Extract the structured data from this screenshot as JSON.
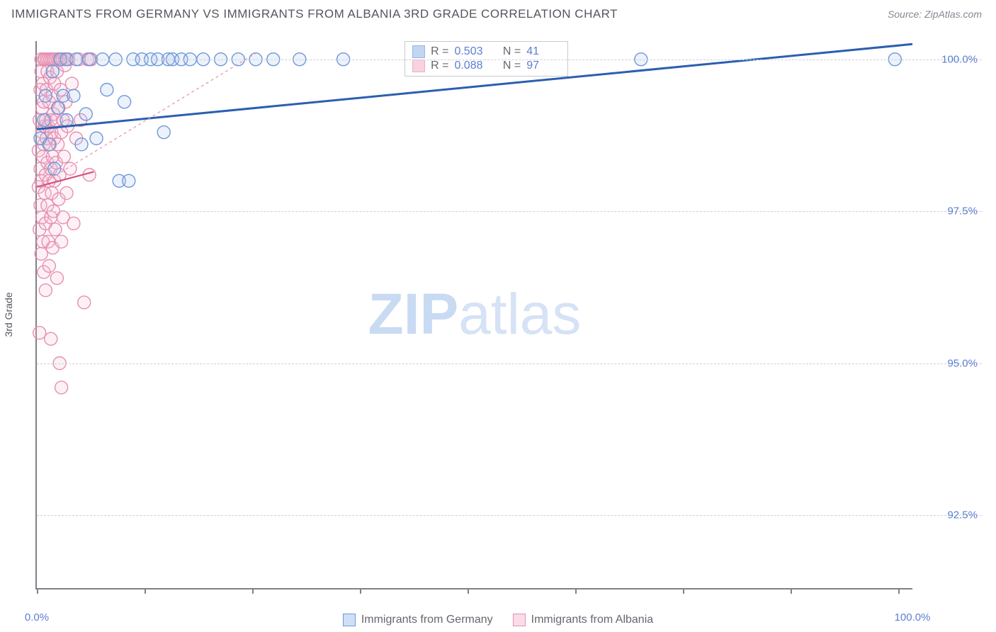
{
  "title": "IMMIGRANTS FROM GERMANY VS IMMIGRANTS FROM ALBANIA 3RD GRADE CORRELATION CHART",
  "source_label": "Source: ZipAtlas.com",
  "ylabel": "3rd Grade",
  "watermark": {
    "bold": "ZIP",
    "rest": "atlas"
  },
  "chart": {
    "type": "scatter",
    "xlim": [
      0,
      100
    ],
    "ylim": [
      91.3,
      100.3
    ],
    "x_ticks_major_pct": [
      0,
      12.3,
      24.6,
      36.9,
      49.2,
      61.5,
      73.8,
      86.1,
      98.4
    ],
    "x_tick_labels": [
      {
        "pos": 0,
        "text": "0.0%"
      },
      {
        "pos": 100,
        "text": "100.0%"
      }
    ],
    "y_gridlines": [
      92.5,
      95.0,
      97.5,
      100.0
    ],
    "y_tick_labels": [
      "92.5%",
      "95.0%",
      "97.5%",
      "100.0%"
    ],
    "grid_color": "#cfcfd6",
    "axis_color": "#808088",
    "background": "#ffffff",
    "marker_radius": 9,
    "marker_stroke_width": 1.4,
    "marker_fill_opacity": 0.22
  },
  "series": [
    {
      "name": "Immigrants from Germany",
      "color_stroke": "#6f97d8",
      "color_fill": "#a9c4ec",
      "R": "0.503",
      "N": "41",
      "trend": {
        "x1": 0,
        "y1": 98.85,
        "x2": 100,
        "y2": 100.25,
        "stroke": "#2b5fb0",
        "width": 3,
        "dash": ""
      },
      "points": [
        [
          0.4,
          98.7
        ],
        [
          0.8,
          99.0
        ],
        [
          1.0,
          99.4
        ],
        [
          1.4,
          98.6
        ],
        [
          1.8,
          99.8
        ],
        [
          2.0,
          98.2
        ],
        [
          2.4,
          99.2
        ],
        [
          2.7,
          100.0
        ],
        [
          3.0,
          99.4
        ],
        [
          3.4,
          99.0
        ],
        [
          3.4,
          100.0
        ],
        [
          4.2,
          99.4
        ],
        [
          4.5,
          100.0
        ],
        [
          5.1,
          98.6
        ],
        [
          5.6,
          99.1
        ],
        [
          6.0,
          100.0
        ],
        [
          6.8,
          98.7
        ],
        [
          7.5,
          100.0
        ],
        [
          8.0,
          99.5
        ],
        [
          9.0,
          100.0
        ],
        [
          9.4,
          98.0
        ],
        [
          10.0,
          99.3
        ],
        [
          10.5,
          98.0
        ],
        [
          11.0,
          100.0
        ],
        [
          12.0,
          100.0
        ],
        [
          13.0,
          100.0
        ],
        [
          13.8,
          100.0
        ],
        [
          14.5,
          98.8
        ],
        [
          15.0,
          100.0
        ],
        [
          15.5,
          100.0
        ],
        [
          16.5,
          100.0
        ],
        [
          17.5,
          100.0
        ],
        [
          19.0,
          100.0
        ],
        [
          21.0,
          100.0
        ],
        [
          23.0,
          100.0
        ],
        [
          25.0,
          100.0
        ],
        [
          27.0,
          100.0
        ],
        [
          30.0,
          100.0
        ],
        [
          35.0,
          100.0
        ],
        [
          69.0,
          100.0
        ],
        [
          98.0,
          100.0
        ]
      ]
    },
    {
      "name": "Immigrants from Albania",
      "color_stroke": "#e68fb0",
      "color_fill": "#f4c1d4",
      "R": "0.088",
      "N": "97",
      "trend": {
        "x1": 0,
        "y1": 97.9,
        "x2": 25,
        "y2": 100.1,
        "stroke": "#e68fb0",
        "width": 1.2,
        "dash": "4 4"
      },
      "trend_solid": {
        "x1": 0,
        "y1": 97.9,
        "x2": 6.5,
        "y2": 98.15,
        "stroke": "#d4547f",
        "width": 2.2
      },
      "points": [
        [
          0.2,
          97.9
        ],
        [
          0.2,
          98.5
        ],
        [
          0.3,
          97.2
        ],
        [
          0.3,
          99.0
        ],
        [
          0.3,
          95.5
        ],
        [
          0.4,
          98.2
        ],
        [
          0.4,
          99.5
        ],
        [
          0.4,
          97.6
        ],
        [
          0.5,
          99.8
        ],
        [
          0.5,
          98.0
        ],
        [
          0.5,
          96.8
        ],
        [
          0.5,
          100.0
        ],
        [
          0.6,
          98.8
        ],
        [
          0.6,
          97.4
        ],
        [
          0.6,
          99.2
        ],
        [
          0.7,
          98.4
        ],
        [
          0.7,
          99.6
        ],
        [
          0.7,
          97.0
        ],
        [
          0.8,
          100.0
        ],
        [
          0.8,
          98.6
        ],
        [
          0.8,
          96.5
        ],
        [
          0.8,
          99.3
        ],
        [
          0.9,
          97.8
        ],
        [
          0.9,
          98.9
        ],
        [
          0.9,
          100.0
        ],
        [
          1.0,
          98.1
        ],
        [
          1.0,
          97.3
        ],
        [
          1.0,
          99.0
        ],
        [
          1.0,
          96.2
        ],
        [
          1.1,
          98.7
        ],
        [
          1.1,
          99.5
        ],
        [
          1.1,
          100.0
        ],
        [
          1.2,
          97.6
        ],
        [
          1.2,
          98.3
        ],
        [
          1.2,
          99.8
        ],
        [
          1.3,
          97.0
        ],
        [
          1.3,
          98.9
        ],
        [
          1.3,
          100.0
        ],
        [
          1.4,
          98.0
        ],
        [
          1.4,
          99.3
        ],
        [
          1.4,
          96.6
        ],
        [
          1.5,
          98.6
        ],
        [
          1.5,
          99.7
        ],
        [
          1.5,
          100.0
        ],
        [
          1.6,
          97.4
        ],
        [
          1.6,
          98.2
        ],
        [
          1.6,
          99.0
        ],
        [
          1.7,
          100.0
        ],
        [
          1.7,
          98.8
        ],
        [
          1.7,
          97.8
        ],
        [
          1.8,
          99.4
        ],
        [
          1.8,
          96.9
        ],
        [
          1.8,
          98.4
        ],
        [
          1.9,
          100.0
        ],
        [
          1.9,
          99.1
        ],
        [
          1.9,
          97.5
        ],
        [
          2.0,
          98.0
        ],
        [
          2.0,
          99.6
        ],
        [
          2.0,
          98.7
        ],
        [
          2.1,
          100.0
        ],
        [
          2.1,
          97.2
        ],
        [
          2.2,
          99.0
        ],
        [
          2.2,
          98.3
        ],
        [
          2.3,
          99.8
        ],
        [
          2.3,
          96.4
        ],
        [
          2.4,
          98.6
        ],
        [
          2.4,
          100.0
        ],
        [
          2.5,
          97.7
        ],
        [
          2.5,
          99.2
        ],
        [
          2.6,
          98.1
        ],
        [
          2.6,
          100.0
        ],
        [
          2.7,
          99.5
        ],
        [
          2.8,
          97.0
        ],
        [
          2.8,
          98.8
        ],
        [
          2.9,
          100.0
        ],
        [
          3.0,
          99.0
        ],
        [
          3.0,
          97.4
        ],
        [
          3.1,
          98.4
        ],
        [
          3.2,
          100.0
        ],
        [
          3.3,
          99.3
        ],
        [
          3.4,
          97.8
        ],
        [
          3.5,
          98.9
        ],
        [
          3.6,
          100.0
        ],
        [
          3.8,
          98.2
        ],
        [
          4.0,
          99.6
        ],
        [
          4.2,
          97.3
        ],
        [
          4.5,
          98.7
        ],
        [
          4.8,
          100.0
        ],
        [
          5.0,
          99.0
        ],
        [
          5.4,
          96.0
        ],
        [
          2.6,
          95.0
        ],
        [
          1.6,
          95.4
        ],
        [
          2.8,
          94.6
        ],
        [
          5.8,
          100.0
        ],
        [
          6.2,
          100.0
        ],
        [
          6.0,
          98.1
        ],
        [
          3.2,
          99.9
        ]
      ]
    }
  ],
  "legend_top_labels": {
    "R": "R =",
    "N": "N ="
  },
  "legend_bottom": [
    {
      "label": "Immigrants from Germany",
      "stroke": "#6f97d8",
      "fill": "#cfe0f6"
    },
    {
      "label": "Immigrants from Albania",
      "stroke": "#e68fb0",
      "fill": "#f9dce7"
    }
  ]
}
